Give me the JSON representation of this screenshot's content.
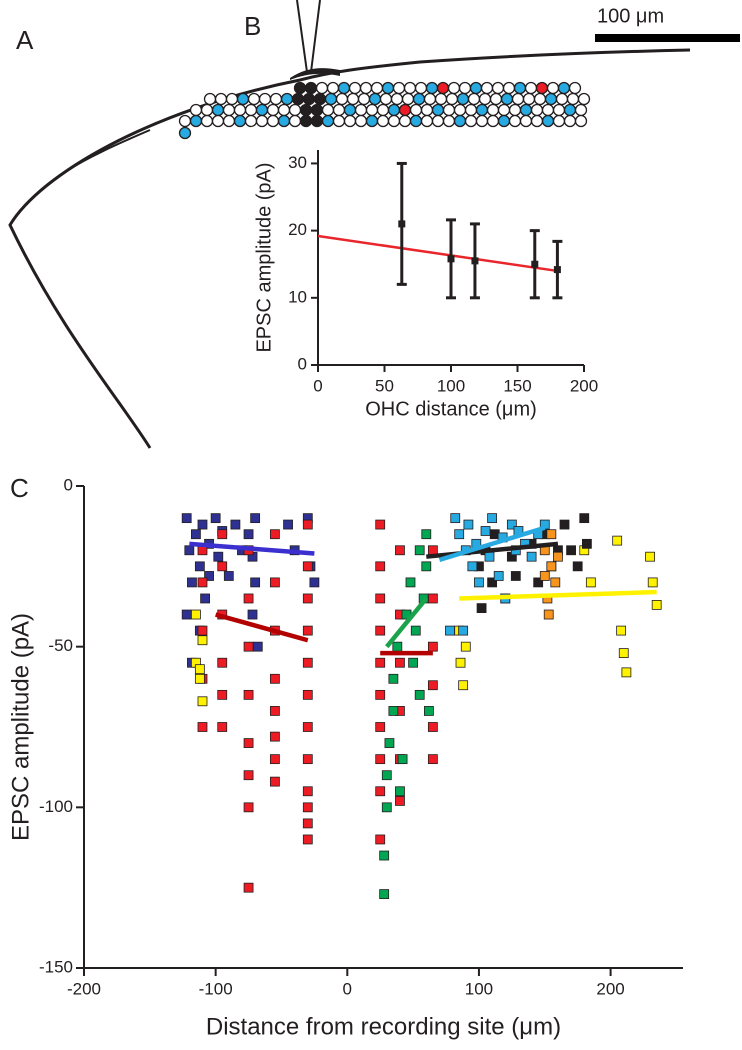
{
  "panel_a": {
    "label": "A",
    "scale_bar_label": "100 μm"
  },
  "chart_data": [
    {
      "type": "errorbar",
      "label": "B",
      "xlabel": "OHC distance (μm)",
      "ylabel": "EPSC amplitude (pA)",
      "x": [
        63,
        100,
        118,
        163,
        180
      ],
      "values": [
        21,
        15.8,
        15.5,
        15,
        14.2
      ],
      "errors": [
        9,
        5.8,
        5.5,
        5,
        4.2
      ],
      "color": "#231f20",
      "fit": {
        "color": "#e8262b",
        "x": [
          0,
          180
        ],
        "values": [
          19.2,
          14
        ]
      },
      "xlim": [
        0,
        200
      ],
      "xticks": [
        0,
        50,
        100,
        150,
        200
      ],
      "ylim": [
        0,
        32
      ],
      "yticks": [
        0,
        10,
        20,
        30
      ]
    },
    {
      "type": "scatter",
      "label": "C",
      "xlabel": "Distance from recording site (μm)",
      "ylabel": "EPSC amplitude (pA)",
      "xlim": [
        -200,
        255
      ],
      "xticks": [
        -200,
        -100,
        0,
        100,
        200
      ],
      "ylim": [
        -150,
        0
      ],
      "yticks": [
        -150,
        -100,
        -50,
        0
      ],
      "series": [
        {
          "color": "#2e3192",
          "x": [
            -122,
            -120,
            -118,
            -115,
            -112,
            -110,
            -108,
            -105,
            -100,
            -98,
            -95,
            -90,
            -85,
            -80,
            -75,
            -72,
            -70,
            -68,
            -45,
            -40,
            -30,
            -28,
            -25,
            -122,
            -118,
            -112,
            -105,
            -70,
            -72
          ],
          "values": [
            -10,
            -20,
            -30,
            -15,
            -25,
            -12,
            -35,
            -18,
            -10,
            -22,
            -14,
            -28,
            -12,
            -20,
            -15,
            -40,
            -10,
            -50,
            -12,
            -20,
            -10,
            -25,
            -30,
            -40,
            -55,
            -45,
            -28,
            -30,
            -22
          ]
        },
        {
          "color": "#ed1c24",
          "x": [
            -110,
            -110,
            -110,
            -110,
            -110,
            -95,
            -95,
            -95,
            -95,
            -95,
            -95,
            -75,
            -75,
            -75,
            -75,
            -75,
            -75,
            -75,
            -75,
            -55,
            -55,
            -55,
            -55,
            -55,
            -55,
            -55,
            -55,
            -30,
            -30,
            -30,
            -30,
            -30,
            -30,
            -30,
            -30,
            -30,
            -30,
            -30,
            -30,
            25,
            25,
            25,
            25,
            25,
            25,
            25,
            25,
            25,
            25,
            40,
            40,
            40,
            40,
            40,
            40,
            65,
            65,
            65,
            65,
            65,
            65
          ],
          "values": [
            -20,
            -30,
            -45,
            -60,
            -75,
            -15,
            -25,
            -40,
            -55,
            -65,
            -75,
            -20,
            -35,
            -50,
            -65,
            -80,
            -90,
            -100,
            -125,
            -15,
            -30,
            -45,
            -60,
            -70,
            -78,
            -85,
            -92,
            -12,
            -25,
            -35,
            -45,
            -55,
            -65,
            -75,
            -85,
            -95,
            -100,
            -105,
            -110,
            -12,
            -25,
            -35,
            -45,
            -55,
            -65,
            -75,
            -85,
            -95,
            -110,
            -20,
            -40,
            -55,
            -70,
            -85,
            -98,
            -20,
            -35,
            -50,
            -62,
            -75,
            -85
          ]
        },
        {
          "color": "#fff200",
          "x": [
            -115,
            -115,
            -112,
            -110,
            -110,
            -112,
            85,
            86,
            88,
            90,
            180,
            185,
            205,
            208,
            210,
            212,
            230,
            232,
            235
          ],
          "values": [
            -40,
            -55,
            -60,
            -67,
            -48,
            -57,
            -45,
            -55,
            -62,
            -50,
            -20,
            -30,
            -17,
            -45,
            -52,
            -58,
            -22,
            -30,
            -37
          ]
        },
        {
          "color": "#00a651",
          "x": [
            28,
            28,
            30,
            30,
            32,
            35,
            35,
            38,
            40,
            42,
            45,
            48,
            50,
            52,
            55,
            55,
            58,
            60,
            60,
            62
          ],
          "values": [
            -127,
            -115,
            -100,
            -90,
            -80,
            -70,
            -60,
            -50,
            -95,
            -85,
            -40,
            -30,
            -55,
            -45,
            -20,
            -65,
            -35,
            -25,
            -15,
            -70
          ]
        },
        {
          "color": "#231f20",
          "x": [
            100,
            102,
            105,
            110,
            112,
            120,
            125,
            128,
            140,
            145,
            150,
            155,
            160,
            165,
            170,
            175,
            180,
            182
          ],
          "values": [
            -25,
            -38,
            -20,
            -30,
            -15,
            -35,
            -22,
            -28,
            -18,
            -30,
            -15,
            -25,
            -20,
            -12,
            -20,
            -25,
            -10,
            -18
          ]
        },
        {
          "color": "#27aae1",
          "x": [
            82,
            85,
            88,
            90,
            92,
            95,
            98,
            100,
            105,
            108,
            110,
            115,
            118,
            120,
            125,
            128,
            130,
            135,
            140,
            145,
            150,
            78
          ],
          "values": [
            -10,
            -15,
            -45,
            -20,
            -12,
            -25,
            -18,
            -30,
            -14,
            -22,
            -10,
            -28,
            -16,
            -35,
            -12,
            -20,
            -14,
            -18,
            -22,
            -15,
            -12,
            -45
          ]
        },
        {
          "color": "#f7941d",
          "x": [
            150,
            150,
            152,
            153,
            155,
            155,
            158,
            160
          ],
          "values": [
            -20,
            -28,
            -35,
            -40,
            -15,
            -25,
            -30,
            -22
          ]
        }
      ],
      "fits": [
        {
          "color": "#3b2fd0",
          "x": [
            -120,
            -25
          ],
          "values": [
            -18,
            -21
          ]
        },
        {
          "color": "#b30000",
          "x": [
            -100,
            -30
          ],
          "values": [
            -40,
            -48
          ]
        },
        {
          "color": "#b30000",
          "x": [
            25,
            65
          ],
          "values": [
            -52,
            -52
          ]
        },
        {
          "color": "#1aa34a",
          "x": [
            30,
            60
          ],
          "values": [
            -50,
            -35
          ]
        },
        {
          "color": "#231f20",
          "x": [
            60,
            160
          ],
          "values": [
            -22,
            -18
          ]
        },
        {
          "color": "#27aae1",
          "x": [
            70,
            150
          ],
          "values": [
            -23,
            -13
          ]
        },
        {
          "color": "#fff200",
          "x": [
            85,
            235
          ],
          "values": [
            -35,
            -33
          ]
        }
      ]
    }
  ]
}
